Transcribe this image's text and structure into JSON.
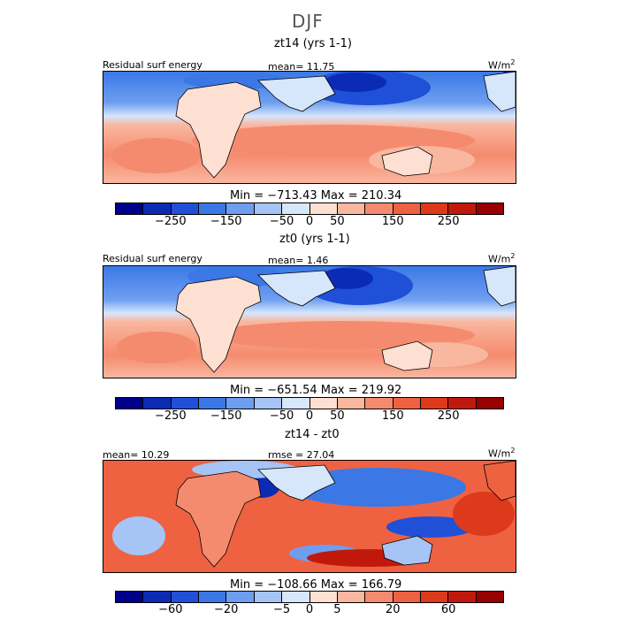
{
  "title": "DJF",
  "colors": {
    "energy": [
      "#00008b",
      "#0c2bb5",
      "#1f50d7",
      "#3b78e6",
      "#6e9ef0",
      "#a6c4f5",
      "#d6e6fb",
      "#fde0d2",
      "#f9b7a0",
      "#f58b6e",
      "#ee6242",
      "#dd3a1b",
      "#c0190c",
      "#990000"
    ],
    "diff": [
      "#00008b",
      "#0c2bb5",
      "#1f50d7",
      "#3b78e6",
      "#6e9ef0",
      "#a6c4f5",
      "#d6e6fb",
      "#fde0d2",
      "#f9b7a0",
      "#f58b6e",
      "#ee6242",
      "#dd3a1b",
      "#c0190c",
      "#990000"
    ]
  },
  "chart_data": [
    {
      "type": "heatmap",
      "title": "zt14 (yrs 1-1)",
      "label": "Residual surf energy",
      "mean_text": "mean=  11.75",
      "units": "W/m",
      "units_exp": "2",
      "minmax": "Min = -713.43  Max = 210.34",
      "colorbar_ticks": [
        "-250",
        "-150",
        "-50",
        "0",
        "50",
        "150",
        "250"
      ],
      "colorbar_levels": 14,
      "stats": {
        "mean": 11.75,
        "min": -713.43,
        "max": 210.34
      },
      "region": "Africa / Indian Ocean / West Pacific"
    },
    {
      "type": "heatmap",
      "title": "zt0 (yrs 1-1)",
      "label": "Residual surf energy",
      "mean_text": "mean=   1.46",
      "units": "W/m",
      "units_exp": "2",
      "minmax": "Min = -651.54  Max = 219.92",
      "colorbar_ticks": [
        "-250",
        "-150",
        "-50",
        "0",
        "50",
        "150",
        "250"
      ],
      "colorbar_levels": 14,
      "stats": {
        "mean": 1.46,
        "min": -651.54,
        "max": 219.92
      }
    },
    {
      "type": "heatmap",
      "title": "zt14 - zt0",
      "mean_text": "mean=  10.29",
      "rmse_text": "rmse =  27.04",
      "units": "W/m",
      "units_exp": "2",
      "minmax": "Min = -108.66  Max = 166.79",
      "colorbar_ticks": [
        "-60",
        "-20",
        "-5",
        "0",
        "5",
        "20",
        "60"
      ],
      "colorbar_levels": 14,
      "stats": {
        "mean": 10.29,
        "rmse": 27.04,
        "min": -108.66,
        "max": 166.79
      }
    }
  ]
}
